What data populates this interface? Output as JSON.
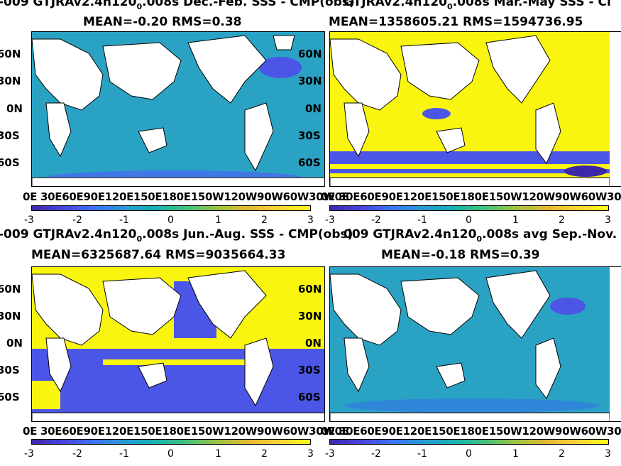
{
  "chart_data": [
    {
      "type": "heatmap",
      "panel": "top-left",
      "title_line1": "-009 GTJRAv2.4n120",
      "title_sub": "0",
      "title_line1_rest": ".008s  Dec.-Feb. SSS - CMP(obs)",
      "title_line2": "MEAN=-0.20   RMS=0.38",
      "mean": -0.2,
      "rms": 0.38,
      "yticks": [
        "60N",
        "30N",
        "0N",
        "30S",
        "60S"
      ],
      "xticks": "0E 30E60E90E120E150E180E150W120W90W60W30W0E",
      "colorbar_ticks": [
        "-3",
        "-2",
        "-1",
        "0",
        "1",
        "2",
        "3"
      ],
      "clim": [
        -3,
        3
      ],
      "field": "ocean_mostly_near_zero"
    },
    {
      "type": "heatmap",
      "panel": "top-right",
      "title_line1": "GTJRAv2.4n120",
      "title_sub": "0",
      "title_line1_rest": ".008s Mar.-May SSS - Cl",
      "title_line2": "MEAN=1358605.21   RMS=1594736.95",
      "mean": 1358605.21,
      "rms": 1594736.95,
      "yticks": [
        "60N",
        "30N",
        "0N",
        "30S",
        "60S"
      ],
      "xticks": "0E 30E60E90E120E150E180E150W120W90W60W30W0E",
      "colorbar_ticks": [
        "-3",
        "-2",
        "-1",
        "0",
        "1",
        "2",
        "3"
      ],
      "clim": [
        -3,
        3
      ],
      "field": "ocean_mostly_saturated_high"
    },
    {
      "type": "heatmap",
      "panel": "bottom-left",
      "title_line1": "-009 GTJRAv2.4n120",
      "title_sub": "0",
      "title_line1_rest": ".008s Jun.-Aug. SSS - CMP(obs)",
      "title_line2": "MEAN=6325687.64   RMS=9035664.33",
      "mean": 6325687.64,
      "rms": 9035664.33,
      "yticks": [
        "60N",
        "30N",
        "0N",
        "30S",
        "60S"
      ],
      "xticks": "0E 30E60E90E120E150E180E150W120W90W60W30W0E",
      "colorbar_ticks": [
        "-3",
        "-2",
        "-1",
        "0",
        "1",
        "2",
        "3"
      ],
      "clim": [
        -3,
        3
      ],
      "field": "ocean_mixed_saturated"
    },
    {
      "type": "heatmap",
      "panel": "bottom-right",
      "title_line1": "009 GTJRAv2.4n120",
      "title_sub": "0",
      "title_line1_rest": ".008s avg Sep.-Nov. SSS -",
      "title_line2": "MEAN=-0.18   RMS=0.39",
      "mean": -0.18,
      "rms": 0.39,
      "yticks": [
        "60N",
        "30N",
        "0N",
        "30S",
        "60S"
      ],
      "xticks": "0E 30E60E90E120E150E180E150W120W90W60W30W0E",
      "colorbar_ticks": [
        "-3",
        "-2",
        "-1",
        "0",
        "1",
        "2",
        "3"
      ],
      "clim": [
        -3,
        3
      ],
      "field": "ocean_mostly_near_zero"
    }
  ],
  "colors": {
    "ocean_near_zero": "#2aa2c4",
    "ocean_low": "#4b55e6",
    "high": "#f9f50f",
    "land": "#ffffff"
  }
}
